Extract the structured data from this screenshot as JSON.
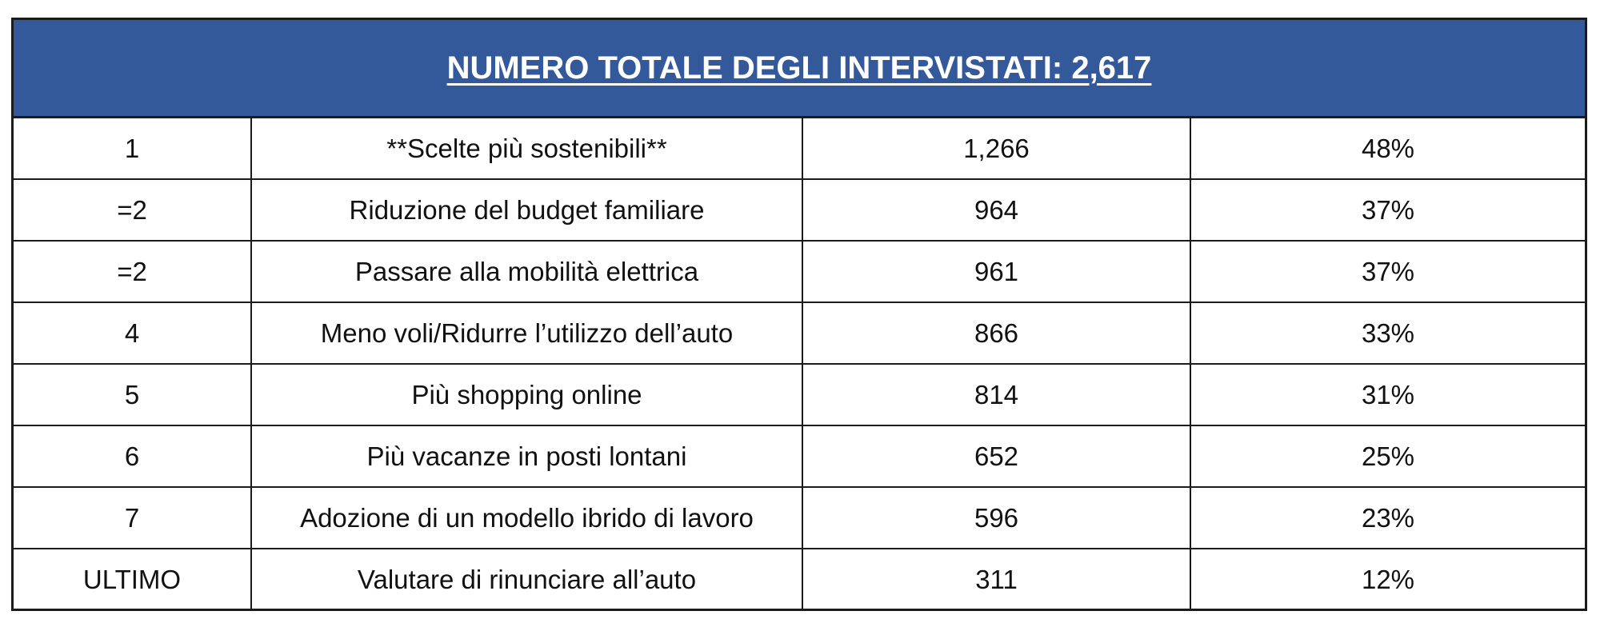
{
  "table": {
    "title": "NUMERO TOTALE DEGLI INTERVISTATI: 2,617",
    "rows": [
      {
        "rank": "1",
        "item": "**Scelte più sostenibili**",
        "count": "1,266",
        "percent": "48%"
      },
      {
        "rank": "=2",
        "item": "Riduzione del budget familiare",
        "count": "964",
        "percent": "37%"
      },
      {
        "rank": "=2",
        "item": "Passare alla mobilità elettrica",
        "count": "961",
        "percent": "37%"
      },
      {
        "rank": "4",
        "item": "Meno voli/Ridurre l’utilizzo dell’auto",
        "count": "866",
        "percent": "33%"
      },
      {
        "rank": "5",
        "item": "Più shopping online",
        "count": "814",
        "percent": "31%"
      },
      {
        "rank": "6",
        "item": "Più vacanze in posti lontani",
        "count": "652",
        "percent": "25%"
      },
      {
        "rank": "7",
        "item": "Adozione di un modello ibrido di lavoro",
        "count": "596",
        "percent": "23%"
      },
      {
        "rank": "ULTIMO",
        "item": "Valutare di rinunciare all’auto",
        "count": "311",
        "percent": "12%"
      }
    ]
  },
  "colors": {
    "header_background": "#34599a",
    "header_text": "#ffffff",
    "border": "#1b1b1b"
  }
}
